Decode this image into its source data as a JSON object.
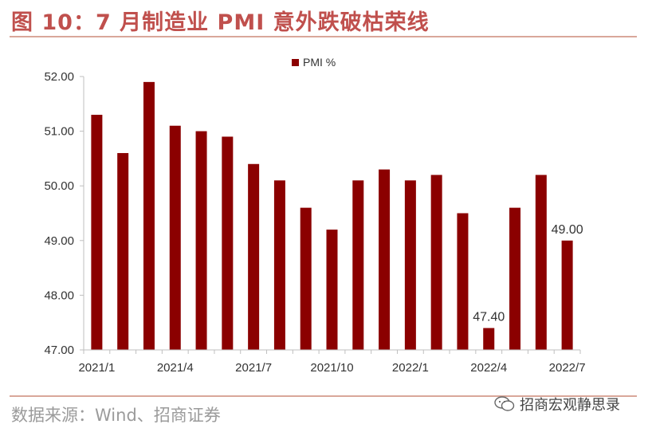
{
  "figure": {
    "title": "图 10：7 月制造业 PMI 意外跌破枯荣线",
    "source": "数据来源：Wind、招商证券",
    "watermark": "招商宏观静思录",
    "watermark_icon": "wechat-icon"
  },
  "colors": {
    "title": "#c0504d",
    "bar": "#8b0000",
    "rule": "#d9a79a",
    "axis": "#bfbfbf"
  },
  "chart_data": {
    "type": "bar",
    "title": "",
    "xlabel": "",
    "ylabel": "",
    "legend": {
      "entries": [
        "PMI %"
      ],
      "placement": "top-center"
    },
    "grid": false,
    "ylim": [
      47.0,
      52.0
    ],
    "yticks": [
      "47.00",
      "48.00",
      "49.00",
      "50.00",
      "51.00",
      "52.00"
    ],
    "xtick_labels": [
      "2021/1",
      "2021/4",
      "2021/7",
      "2021/10",
      "2022/1",
      "2022/4",
      "2022/7"
    ],
    "categories": [
      "2021/1",
      "2021/2",
      "2021/3",
      "2021/4",
      "2021/5",
      "2021/6",
      "2021/7",
      "2021/8",
      "2021/9",
      "2021/10",
      "2021/11",
      "2021/12",
      "2022/1",
      "2022/2",
      "2022/3",
      "2022/4",
      "2022/5",
      "2022/6",
      "2022/7"
    ],
    "series": [
      {
        "name": "PMI %",
        "values": [
          51.3,
          50.6,
          51.9,
          51.1,
          51.0,
          50.9,
          50.4,
          50.1,
          49.6,
          49.2,
          50.1,
          50.3,
          50.1,
          50.2,
          49.5,
          47.4,
          49.6,
          50.2,
          49.0
        ]
      }
    ],
    "data_labels": [
      {
        "category": "2022/4",
        "text": "47.40"
      },
      {
        "category": "2022/7",
        "text": "49.00"
      }
    ]
  }
}
